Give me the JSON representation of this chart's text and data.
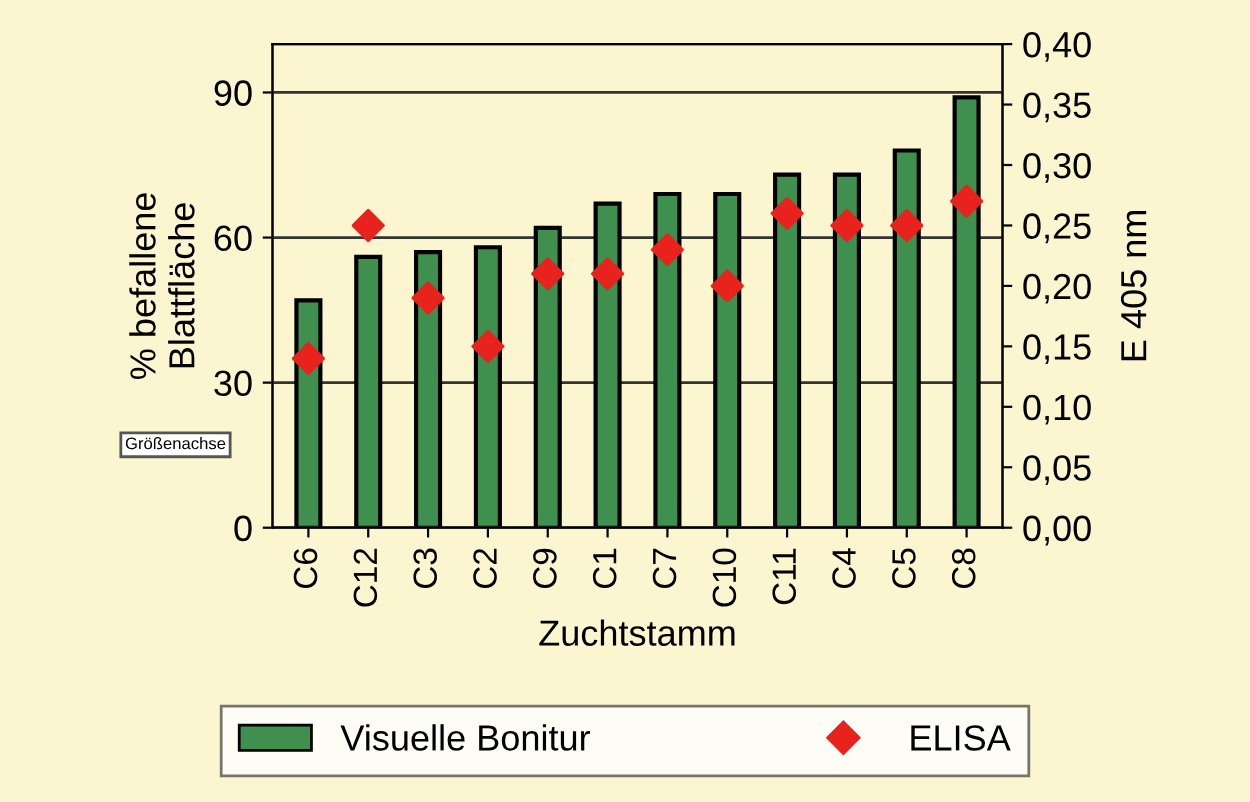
{
  "chart_data": {
    "type": "bar",
    "xlabel": "Zuchtstamm",
    "ylabel": "% befallene\nBlattfläche",
    "y2label": "E 405 nm",
    "categories": [
      "C6",
      "C12",
      "C3",
      "C2",
      "C9",
      "C1",
      "C7",
      "C10",
      "C11",
      "C4",
      "C5",
      "C8"
    ],
    "series": [
      {
        "name": "Visuelle Bonitur",
        "color": "#3f8f4f",
        "values": [
          47,
          56,
          57,
          58,
          62,
          67,
          69,
          69,
          73,
          73,
          78,
          89
        ]
      },
      {
        "name": "ELISA",
        "type": "scatter",
        "axis": "y2",
        "color": "#e8221c",
        "marker": "diamond",
        "values": [
          0.14,
          0.25,
          0.19,
          0.15,
          0.21,
          0.21,
          0.23,
          0.2,
          0.26,
          0.25,
          0.25,
          0.27
        ]
      }
    ],
    "ylim": [
      0,
      100
    ],
    "yticks": [
      0,
      30,
      60,
      90
    ],
    "y2lim": [
      0,
      0.4
    ],
    "y2ticks": [
      {
        "value": 0,
        "label": "0,00"
      },
      {
        "value": 0.05,
        "label": "0,05"
      },
      {
        "value": 0.1,
        "label": "0,10"
      },
      {
        "value": 0.15,
        "label": "0,15"
      },
      {
        "value": 0.2,
        "label": "0,20"
      },
      {
        "value": 0.25,
        "label": "0,25"
      },
      {
        "value": 0.3,
        "label": "0,30"
      },
      {
        "value": 0.35,
        "label": "0,35"
      },
      {
        "value": 0.4,
        "label": "0,40"
      }
    ],
    "grid": "y",
    "legend": "bottom",
    "annotations": [
      "Größenachse"
    ]
  }
}
